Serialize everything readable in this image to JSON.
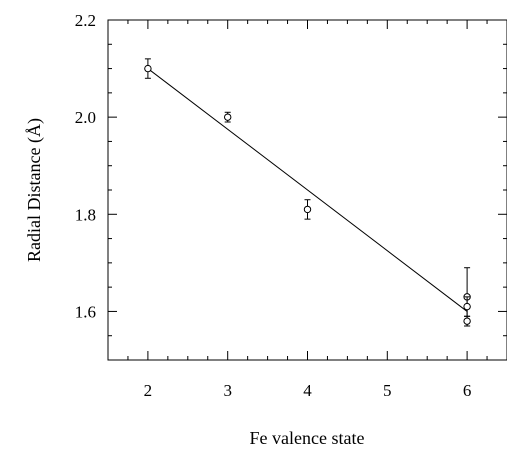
{
  "chart_data": {
    "type": "scatter",
    "xlabel": "Fe valence state",
    "ylabel": "Radial Distance (Å)",
    "xlim": [
      1.5,
      6.5
    ],
    "ylim": [
      1.5,
      2.2
    ],
    "xticks": [
      2,
      3,
      4,
      5,
      6
    ],
    "yticks": [
      1.6,
      1.8,
      2.0,
      2.2
    ],
    "xtick_labels": [
      "2",
      "3",
      "4",
      "5",
      "6"
    ],
    "ytick_labels": [
      "1.6",
      "1.8",
      "2.0",
      "2.2"
    ],
    "grid": false,
    "points": [
      {
        "x": 2,
        "y": 2.1,
        "err": 0.02
      },
      {
        "x": 3,
        "y": 2.0,
        "err": 0.01
      },
      {
        "x": 4,
        "y": 1.81,
        "err": 0.02
      },
      {
        "x": 6,
        "y": 1.63,
        "err": 0.06
      },
      {
        "x": 6,
        "y": 1.61,
        "err": 0.02
      },
      {
        "x": 6,
        "y": 1.58,
        "err": 0.01
      }
    ],
    "fit_line": {
      "x": [
        2,
        6
      ],
      "y": [
        2.1,
        1.6
      ]
    }
  }
}
